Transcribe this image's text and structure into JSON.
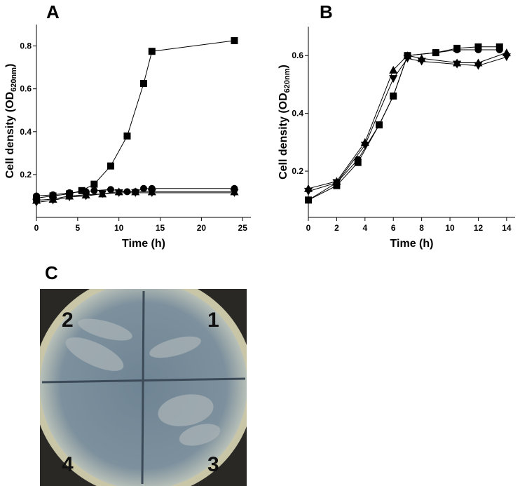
{
  "chart_data": [
    {
      "type": "line",
      "panel_label": "A",
      "xlabel": "Time (h)",
      "ylabel": [
        "Cell density (OD",
        "620nm",
        ")"
      ],
      "xlim": [
        0,
        26
      ],
      "ylim": [
        0,
        0.9
      ],
      "xticks": [
        0,
        5,
        10,
        15,
        20,
        25
      ],
      "yticks": [
        0.2,
        0.4,
        0.6,
        0.8
      ],
      "series": [
        {
          "marker": "square",
          "color": "#000000",
          "x": [
            0,
            2,
            4,
            5.5,
            7,
            9,
            11,
            13,
            14,
            24
          ],
          "values": [
            0.09,
            0.1,
            0.11,
            0.125,
            0.155,
            0.24,
            0.38,
            0.625,
            0.775,
            0.825
          ]
        },
        {
          "marker": "circle",
          "color": "#000000",
          "x": [
            0,
            2,
            4,
            6,
            7,
            9,
            11,
            12,
            13,
            14,
            24
          ],
          "values": [
            0.1,
            0.105,
            0.115,
            0.12,
            0.125,
            0.13,
            0.12,
            0.12,
            0.135,
            0.135,
            0.135
          ]
        },
        {
          "marker": "triangle-up",
          "color": "#000000",
          "x": [
            0,
            2,
            4,
            6,
            8,
            10,
            12,
            14,
            24
          ],
          "values": [
            0.08,
            0.085,
            0.1,
            0.105,
            0.11,
            0.12,
            0.12,
            0.12,
            0.12
          ]
        },
        {
          "marker": "triangle-down",
          "color": "#000000",
          "x": [
            0,
            2,
            4,
            6,
            8,
            10,
            12,
            14,
            24
          ],
          "values": [
            0.07,
            0.08,
            0.095,
            0.1,
            0.11,
            0.115,
            0.115,
            0.115,
            0.115
          ]
        }
      ]
    },
    {
      "type": "line",
      "panel_label": "B",
      "xlabel": "Time (h)",
      "ylabel": [
        "Cell density (OD",
        "620nm",
        ")"
      ],
      "xlim": [
        0,
        14.6
      ],
      "ylim": [
        0.04,
        0.7
      ],
      "xticks": [
        0,
        2,
        4,
        6,
        8,
        10,
        12,
        14
      ],
      "yticks": [
        0.2,
        0.4,
        0.6
      ],
      "series": [
        {
          "marker": "square",
          "color": "#000000",
          "x": [
            0,
            2,
            3.5,
            5,
            6,
            7,
            9,
            10.5,
            12,
            13.5
          ],
          "values": [
            0.1,
            0.15,
            0.23,
            0.36,
            0.46,
            0.6,
            0.61,
            0.625,
            0.63,
            0.63
          ]
        },
        {
          "marker": "circle",
          "color": "#000000",
          "x": [
            0,
            2,
            3.5,
            5,
            6,
            7,
            9,
            10.5,
            12,
            13.5
          ],
          "values": [
            0.1,
            0.16,
            0.24,
            0.36,
            0.46,
            0.6,
            0.61,
            0.62,
            0.62,
            0.62
          ]
        },
        {
          "marker": "triangle-up",
          "color": "#000000",
          "x": [
            0,
            2,
            4,
            6,
            7,
            8,
            10.5,
            12,
            14
          ],
          "values": [
            0.14,
            0.165,
            0.3,
            0.55,
            0.6,
            0.59,
            0.575,
            0.575,
            0.61
          ]
        },
        {
          "marker": "triangle-down",
          "color": "#000000",
          "x": [
            0,
            2,
            4,
            6,
            7,
            8,
            10.5,
            12,
            14
          ],
          "values": [
            0.13,
            0.16,
            0.29,
            0.52,
            0.59,
            0.58,
            0.57,
            0.565,
            0.595
          ]
        }
      ]
    }
  ],
  "photo": {
    "panel_label": "C",
    "sections": [
      "1",
      "2",
      "3",
      "4"
    ]
  }
}
